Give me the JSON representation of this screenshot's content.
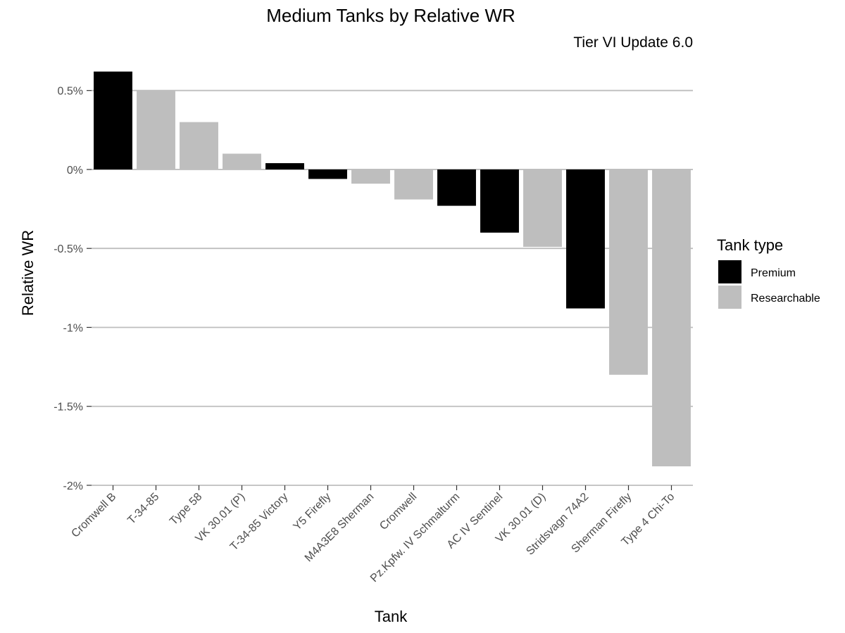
{
  "chart_data": {
    "type": "bar",
    "title": "Medium Tanks by Relative WR",
    "subtitle": "Tier VI Update 6.0",
    "xlabel": "Tank",
    "ylabel": "Relative WR",
    "ylim": [
      -2,
      0.65
    ],
    "yticks": [
      0.5,
      0,
      -0.5,
      -1,
      -1.5,
      -2
    ],
    "ytick_labels": [
      "0.5%",
      "0%",
      "-0.5%",
      "-1%",
      "-1.5%",
      "-2%"
    ],
    "grid": true,
    "legend": {
      "title": "Tank type",
      "position": "right",
      "entries": [
        {
          "name": "Premium",
          "color": "#000000"
        },
        {
          "name": "Researchable",
          "color": "#bebebe"
        }
      ]
    },
    "categories": [
      "Cromwell B",
      "T-34-85",
      "Type 58",
      "VK 30.01 (P)",
      "T-34-85 Victory",
      "Y5 Firefly",
      "M4A3E8 Sherman",
      "Cromwell",
      "Pz.Kpfw. IV Schmalturm",
      "AC IV Sentinel",
      "VK 30.01 (D)",
      "Stridsvagn 74A2",
      "Sherman Firefly",
      "Type 4 Chi-To"
    ],
    "values": [
      0.62,
      0.5,
      0.3,
      0.1,
      0.04,
      -0.06,
      -0.09,
      -0.19,
      -0.23,
      -0.4,
      -0.49,
      -0.88,
      -1.3,
      -1.88
    ],
    "types": [
      "Premium",
      "Researchable",
      "Researchable",
      "Researchable",
      "Premium",
      "Premium",
      "Researchable",
      "Researchable",
      "Premium",
      "Premium",
      "Researchable",
      "Premium",
      "Researchable",
      "Researchable"
    ]
  }
}
